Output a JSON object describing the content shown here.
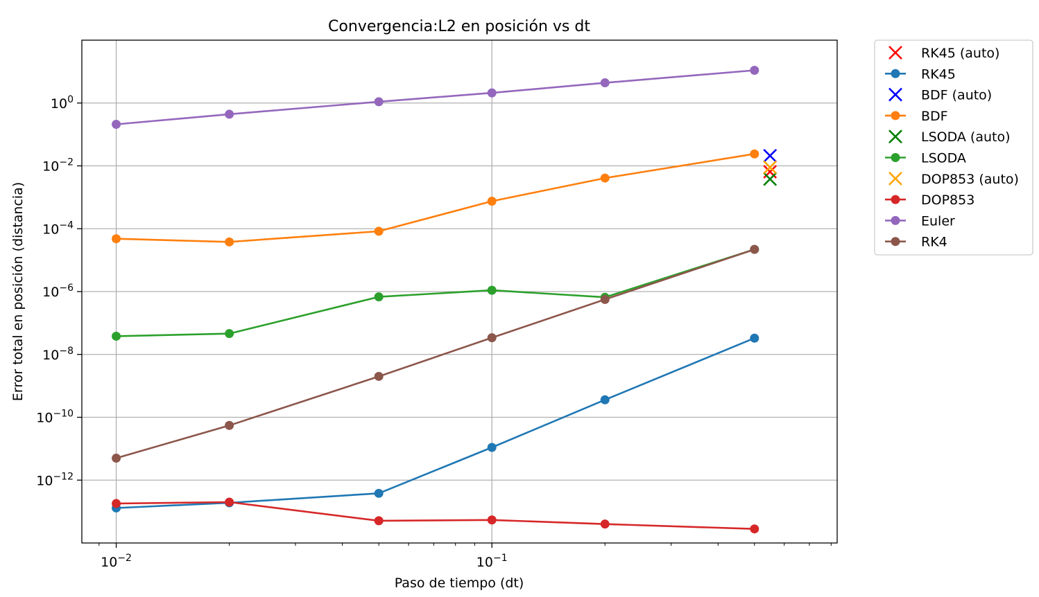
{
  "chart_data": {
    "type": "line",
    "title": "Convergencia:L2 en posición vs dt",
    "xlabel": "Paso de tiempo (dt)",
    "ylabel": "Error total en posición (distancia)",
    "xscale": "log",
    "yscale": "log",
    "xlim": [
      0.0081,
      0.83
    ],
    "ylim": [
      1e-14,
      100.0
    ],
    "grid": true,
    "legend_position": "outside-right-top",
    "x_ticks": [
      {
        "value": 0.01,
        "base": "10",
        "exp": "−2"
      },
      {
        "value": 0.1,
        "base": "10",
        "exp": "−1"
      }
    ],
    "y_ticks": [
      {
        "value": 1,
        "base": "10",
        "exp": "0"
      },
      {
        "value": 0.01,
        "base": "10",
        "exp": "−2"
      },
      {
        "value": 0.0001,
        "base": "10",
        "exp": "−4"
      },
      {
        "value": 1e-06,
        "base": "10",
        "exp": "−6"
      },
      {
        "value": 1e-08,
        "base": "10",
        "exp": "−8"
      },
      {
        "value": 1e-10,
        "base": "10",
        "exp": "−10"
      },
      {
        "value": 1e-12,
        "base": "10",
        "exp": "−12"
      }
    ],
    "x": [
      0.01,
      0.02,
      0.05,
      0.1,
      0.2,
      0.5
    ],
    "series": [
      {
        "name": "RK45 (auto)",
        "kind": "auto",
        "color": "#ff0000",
        "x": 0.55,
        "value": 0.0065
      },
      {
        "name": "RK45",
        "kind": "line",
        "color": "#1f77b4",
        "values": [
          1.3e-13,
          1.9e-13,
          3.8e-13,
          1.1e-11,
          3.6e-10,
          3.3e-08
        ]
      },
      {
        "name": "BDF (auto)",
        "kind": "auto",
        "color": "#0000ff",
        "x": 0.55,
        "value": 0.021
      },
      {
        "name": "BDF",
        "kind": "line",
        "color": "#ff7f0e",
        "values": [
          4.8e-05,
          3.8e-05,
          8.3e-05,
          0.00075,
          0.0041,
          0.024
        ]
      },
      {
        "name": "LSODA (auto)",
        "kind": "auto",
        "color": "#008000",
        "x": 0.55,
        "value": 0.0038
      },
      {
        "name": "LSODA",
        "kind": "line",
        "color": "#2ca02c",
        "values": [
          3.8e-08,
          4.6e-08,
          6.8e-07,
          1.1e-06,
          6.6e-07,
          2.2e-05
        ]
      },
      {
        "name": "DOP853 (auto)",
        "kind": "auto",
        "color": "#ffa500",
        "x": 0.55,
        "value": 0.009
      },
      {
        "name": "DOP853",
        "kind": "line",
        "color": "#d62728",
        "values": [
          1.8e-13,
          2e-13,
          5.1e-14,
          5.4e-14,
          4e-14,
          2.8e-14
        ]
      },
      {
        "name": "Euler",
        "kind": "line",
        "color": "#9467bd",
        "values": [
          0.21,
          0.44,
          1.1,
          2.1,
          4.4,
          11
        ]
      },
      {
        "name": "RK4",
        "kind": "line",
        "color": "#8c564b",
        "values": [
          5e-12,
          5.5e-11,
          2e-09,
          3.4e-08,
          5.6e-07,
          2.2e-05
        ]
      }
    ]
  }
}
